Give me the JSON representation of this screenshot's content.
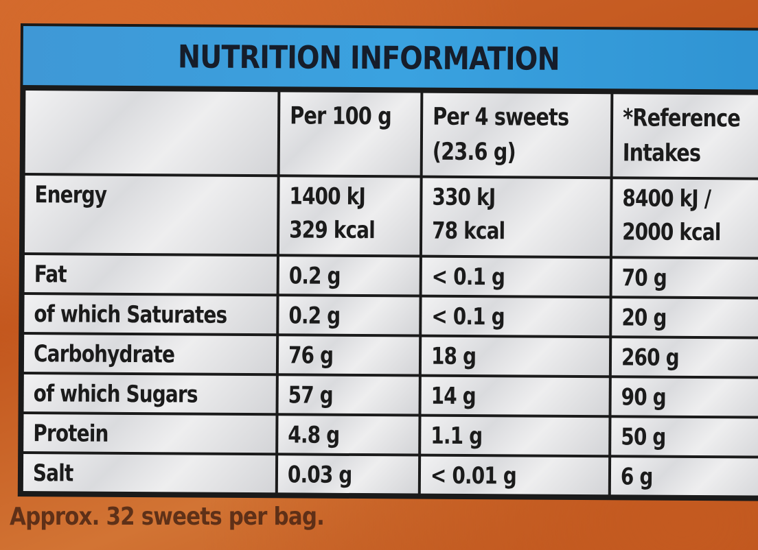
{
  "title": "NUTRITION INFORMATION",
  "columns": {
    "label": "",
    "per100": "Per 100 g",
    "per_serving_line1": "Per 4 sweets",
    "per_serving_line2": "(23.6 g)",
    "reference_line1": "*Reference",
    "reference_line2": "Intakes"
  },
  "rows": [
    {
      "label": "Energy",
      "per100_line1": "1400 kJ",
      "per100_line2": "329 kcal",
      "per_serving_line1": "330 kJ",
      "per_serving_line2": "78 kcal",
      "reference_line1": "8400 kJ /",
      "reference_line2": "2000 kcal"
    },
    {
      "label": "Fat",
      "per100": "0.2 g",
      "per_serving": "< 0.1 g",
      "reference": "70 g"
    },
    {
      "label": "of which Saturates",
      "per100": "0.2 g",
      "per_serving": "< 0.1 g",
      "reference": "20 g"
    },
    {
      "label": "Carbohydrate",
      "per100": "76 g",
      "per_serving": "18 g",
      "reference": "260 g"
    },
    {
      "label": "of which Sugars",
      "per100": "57 g",
      "per_serving": "14 g",
      "reference": "90 g"
    },
    {
      "label": "Protein",
      "per100": "4.8 g",
      "per_serving": "1.1 g",
      "reference": "50 g"
    },
    {
      "label": "Salt",
      "per100": "0.03 g",
      "per_serving": "< 0.01 g",
      "reference": "6 g"
    }
  ],
  "footer": "Approx. 32 sweets per bag.",
  "colors": {
    "packaging": "#c95f25",
    "title_band": "#3aa2e0",
    "grid_lines": "#1a1a1a",
    "cell_background": "#e6e6e8",
    "text": "#1b1b1b"
  }
}
